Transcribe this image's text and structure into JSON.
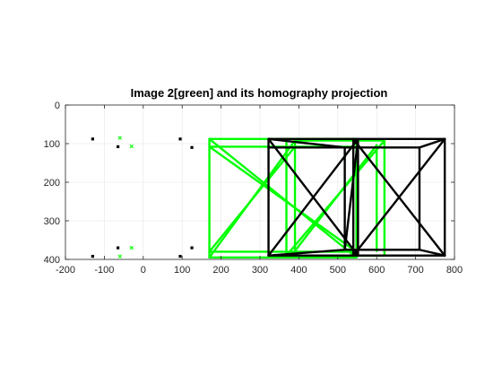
{
  "chart_data": {
    "type": "line",
    "title": "Image 2[green] and its homography projection",
    "xlabel": "",
    "ylabel": "",
    "xlim": [
      -200,
      800
    ],
    "ylim": [
      0,
      400
    ],
    "y_reversed": true,
    "grid": true,
    "aspect": "equal",
    "x_ticks": [
      -200,
      -100,
      0,
      100,
      200,
      300,
      400,
      500,
      600,
      700,
      800
    ],
    "y_ticks": [
      0,
      100,
      200,
      300,
      400
    ],
    "series": [
      {
        "color": "#00ff00",
        "style": "line",
        "segments": [
          [
            [
              170,
              88
            ],
            [
              548,
              88
            ]
          ],
          [
            [
              170,
              108
            ],
            [
              548,
              108
            ]
          ],
          [
            [
              170,
              88
            ],
            [
              170,
              395
            ]
          ],
          [
            [
              170,
              395
            ],
            [
              548,
              395
            ]
          ],
          [
            [
              170,
              380
            ],
            [
              548,
              380
            ]
          ],
          [
            [
              548,
              88
            ],
            [
              548,
              395
            ]
          ],
          [
            [
              170,
              88
            ],
            [
              548,
              395
            ]
          ],
          [
            [
              170,
              108
            ],
            [
              548,
              380
            ]
          ],
          [
            [
              368,
              92
            ],
            [
              368,
              390
            ]
          ],
          [
            [
              390,
              92
            ],
            [
              390,
              390
            ]
          ],
          [
            [
              390,
              92
            ],
            [
              620,
              92
            ]
          ],
          [
            [
              390,
              390
            ],
            [
              620,
              390
            ]
          ],
          [
            [
              620,
              92
            ],
            [
              620,
              390
            ]
          ],
          [
            [
              600,
              104
            ],
            [
              600,
              378
            ]
          ],
          [
            [
              170,
              395
            ],
            [
              390,
              92
            ]
          ],
          [
            [
              170,
              380
            ],
            [
              390,
              108
            ]
          ],
          [
            [
              368,
              390
            ],
            [
              620,
              92
            ]
          ],
          [
            [
              390,
              378
            ],
            [
              600,
              104
            ]
          ]
        ]
      },
      {
        "color": "#000000",
        "style": "line",
        "segments": [
          [
            [
              322,
              88
            ],
            [
              775,
              88
            ]
          ],
          [
            [
              322,
              390
            ],
            [
              775,
              390
            ]
          ],
          [
            [
              322,
              88
            ],
            [
              322,
              390
            ]
          ],
          [
            [
              775,
              88
            ],
            [
              775,
              390
            ]
          ],
          [
            [
              322,
              88
            ],
            [
              552,
              390
            ]
          ],
          [
            [
              322,
              390
            ],
            [
              552,
              88
            ]
          ],
          [
            [
              552,
              88
            ],
            [
              552,
              390
            ]
          ],
          [
            [
              518,
              110
            ],
            [
              518,
              375
            ]
          ],
          [
            [
              518,
              110
            ],
            [
              710,
              110
            ]
          ],
          [
            [
              518,
              375
            ],
            [
              710,
              375
            ]
          ],
          [
            [
              710,
              110
            ],
            [
              710,
              375
            ]
          ],
          [
            [
              322,
              88
            ],
            [
              518,
              110
            ]
          ],
          [
            [
              322,
              390
            ],
            [
              518,
              375
            ]
          ],
          [
            [
              775,
              88
            ],
            [
              710,
              110
            ]
          ],
          [
            [
              775,
              390
            ],
            [
              710,
              375
            ]
          ],
          [
            [
              540,
              88
            ],
            [
              540,
              390
            ]
          ],
          [
            [
              540,
              88
            ],
            [
              775,
              390
            ]
          ],
          [
            [
              540,
              390
            ],
            [
              775,
              88
            ]
          ],
          [
            [
              518,
              375
            ],
            [
              552,
              90
            ]
          ],
          [
            [
              322,
              110
            ],
            [
              552,
              110
            ]
          ]
        ]
      },
      {
        "color": "#00ff00",
        "style": "marker-x",
        "points": [
          [
            -60,
            85
          ],
          [
            -30,
            107
          ],
          [
            -30,
            370
          ],
          [
            -60,
            392
          ]
        ]
      },
      {
        "color": "#000000",
        "style": "marker-square",
        "points": [
          [
            -130,
            88
          ],
          [
            -65,
            108
          ],
          [
            95,
            88
          ],
          [
            125,
            110
          ],
          [
            -65,
            370
          ],
          [
            -130,
            392
          ],
          [
            125,
            370
          ],
          [
            95,
            392
          ]
        ]
      }
    ]
  }
}
